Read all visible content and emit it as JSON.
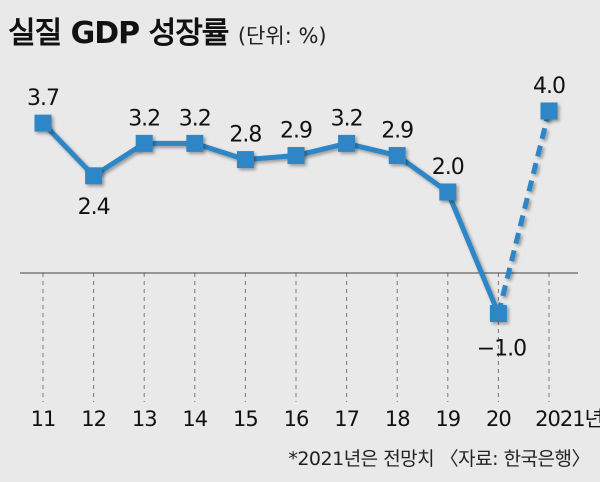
{
  "title": "실질 GDP 성장률",
  "unit": "(단위: %)",
  "footnote": "*2021년은 전망치 〈자료: 한국은행〉",
  "chart_data": {
    "type": "line",
    "title": "실질 GDP 성장률",
    "unit": "%",
    "categories": [
      "11",
      "12",
      "13",
      "14",
      "15",
      "16",
      "17",
      "18",
      "19",
      "20",
      "2021년"
    ],
    "values": [
      3.7,
      2.4,
      3.2,
      3.2,
      2.8,
      2.9,
      3.2,
      2.9,
      2.0,
      -1.0,
      4.0
    ],
    "value_labels": [
      "3.7",
      "2.4",
      "3.2",
      "3.2",
      "2.8",
      "2.9",
      "3.2",
      "2.9",
      "2.0",
      "−1.0",
      "4.0"
    ],
    "forecast_from_index": 9,
    "forecast_note": "2021년은 전망치",
    "color": "#2f86c6",
    "grid": false
  }
}
